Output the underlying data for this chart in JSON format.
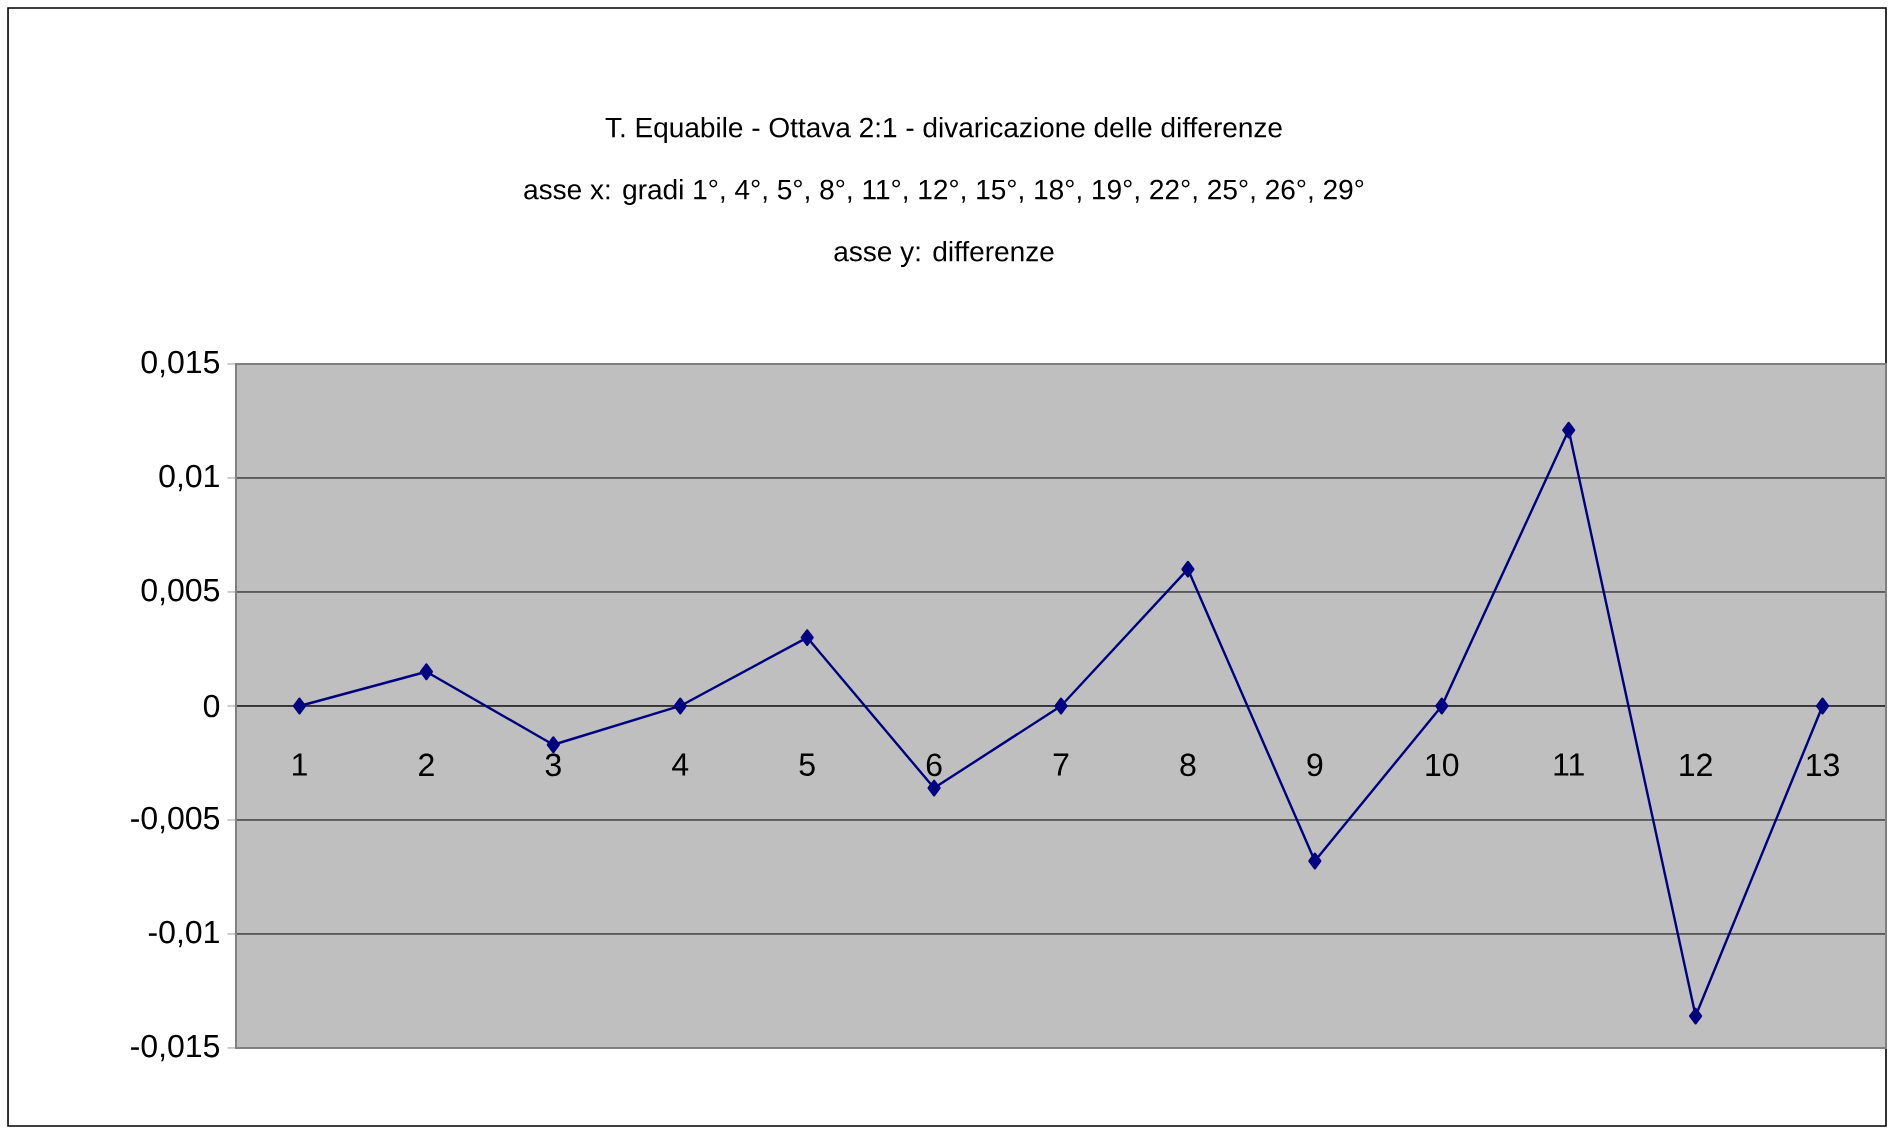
{
  "chart_data": {
    "type": "line",
    "title": "T. Equabile - Ottava 2:1 - divaricazione delle differenze",
    "subtitle": "asse x: gradi 1°, 4°, 5°, 8°, 11°, 12°, 15°, 18°, 19°, 22°, 25°, 26°, 29°",
    "annotations": [
      "asse y: differenze"
    ],
    "categories": [
      "1",
      "2",
      "3",
      "4",
      "5",
      "6",
      "7",
      "8",
      "9",
      "10",
      "11",
      "12",
      "13"
    ],
    "series": [
      {
        "color": "#000080",
        "values": [
          0,
          0.0015,
          -0.0017,
          0,
          0.003,
          -0.0036,
          0,
          0.006,
          -0.0068,
          0,
          0.0121,
          -0.0136,
          0
        ]
      }
    ],
    "ylim": [
      -0.015,
      0.015
    ],
    "yticks": [
      {
        "value": -0.015,
        "label": "-0,015"
      },
      {
        "value": -0.01,
        "label": "-0,01"
      },
      {
        "value": -0.005,
        "label": "-0,005"
      },
      0,
      {
        "value": 0.005,
        "label": "0,005"
      },
      {
        "value": 0.01,
        "label": "0,01"
      },
      {
        "value": 0.015,
        "label": "0,015"
      }
    ],
    "grid": "y",
    "marker": "diamond",
    "line_style": "solid"
  }
}
